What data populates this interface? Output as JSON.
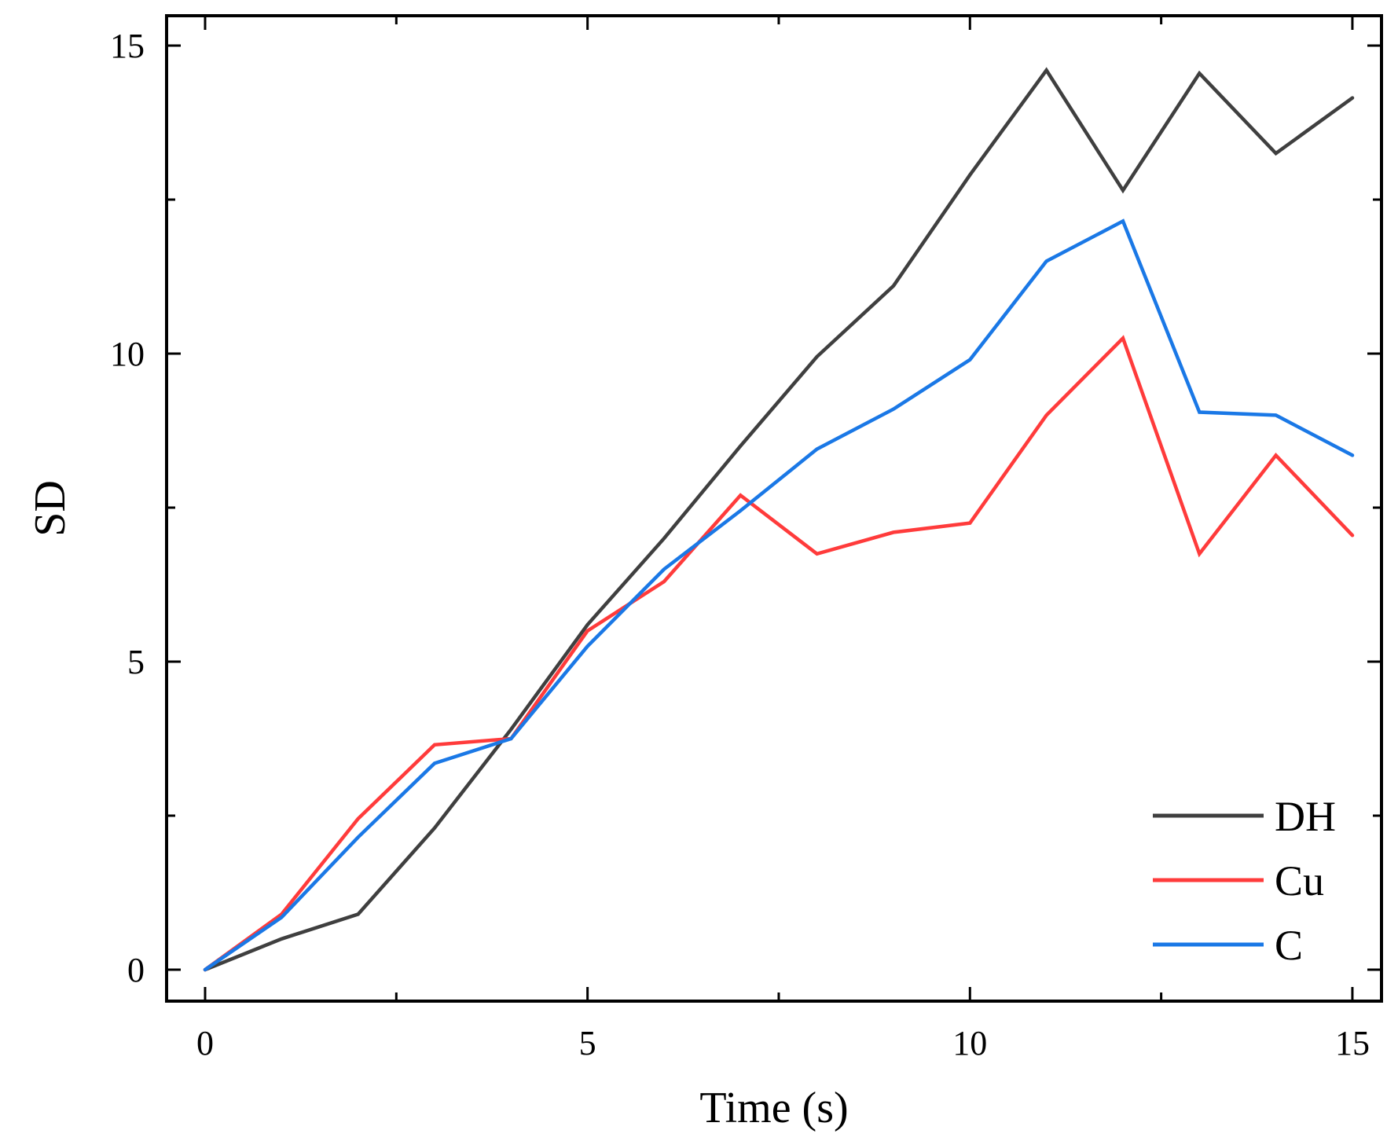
{
  "chart_data": {
    "type": "line",
    "title": "",
    "xlabel": "Time (s)",
    "ylabel": "SD",
    "xlim": [
      -0.5,
      15.5
    ],
    "ylim": [
      -0.5,
      15.5
    ],
    "xticks": [
      0,
      5,
      10,
      15
    ],
    "xticks_minor": [
      2.5,
      7.5,
      12.5
    ],
    "yticks": [
      0,
      5,
      10,
      15
    ],
    "yticks_minor": [
      2.5,
      7.5,
      12.5
    ],
    "x": [
      0,
      1,
      2,
      3,
      4,
      5,
      6,
      7,
      8,
      9,
      10,
      11,
      12,
      13,
      14,
      15
    ],
    "series": [
      {
        "name": "DH",
        "color": "#3f3f3f",
        "values": [
          0,
          0.5,
          0.9,
          2.3,
          3.9,
          5.6,
          7.0,
          8.5,
          9.95,
          11.1,
          12.9,
          14.6,
          12.65,
          14.55,
          13.25,
          14.15
        ]
      },
      {
        "name": "Cu",
        "color": "#ff3b3b",
        "values": [
          0,
          0.9,
          2.45,
          3.65,
          3.75,
          5.5,
          6.3,
          7.7,
          6.75,
          7.1,
          7.25,
          9.0,
          10.25,
          6.75,
          8.35,
          7.05
        ]
      },
      {
        "name": "C",
        "color": "#1a78e6",
        "values": [
          0,
          0.85,
          2.15,
          3.35,
          3.75,
          5.25,
          6.5,
          7.45,
          8.45,
          9.1,
          9.9,
          11.5,
          12.15,
          9.05,
          9.0,
          8.35
        ]
      }
    ],
    "legend_position": "bottom-right",
    "grid": false
  }
}
